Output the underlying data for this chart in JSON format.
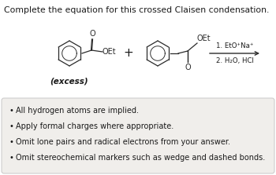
{
  "title": "Complete the equation for this crossed Claisen condensation.",
  "title_fontsize": 7.8,
  "bg_color": "#f0eeeb",
  "white": "#ffffff",
  "black": "#1a1a1a",
  "reagent_line1": "1. EtO⁺Na⁺",
  "reagent_line2": "2. H₂O, HCl",
  "excess_label": "(excess)",
  "bullet_points": [
    "All hydrogen atoms are implied.",
    "Apply formal charges where appropriate.",
    "Omit lone pairs and radical electrons from your answer.",
    "Omit stereochemical markers such as wedge and dashed bonds."
  ],
  "structure_color": "#2a2a2a",
  "bond_lw": 0.9,
  "ring_r": 16
}
